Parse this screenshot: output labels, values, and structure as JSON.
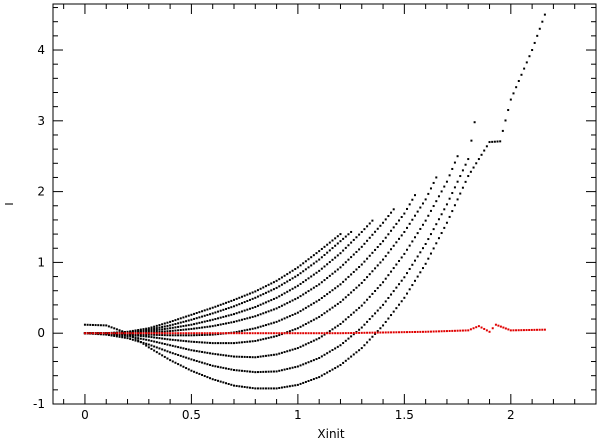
{
  "chart_data": {
    "type": "scatter",
    "xlabel": "Xinit",
    "ylabel": "I",
    "xlim": [
      -0.15,
      2.4
    ],
    "ylim": [
      -1,
      4.65
    ],
    "x_ticks": [
      0,
      0.5,
      1,
      1.5,
      2
    ],
    "x_tick_labels": [
      "0",
      "0.5",
      "1",
      "1.5",
      "2"
    ],
    "y_ticks": [
      -1,
      0,
      1,
      2,
      3,
      4
    ],
    "y_tick_labels": [
      "-1",
      "0",
      "1",
      "2",
      "3",
      "4"
    ],
    "grid": false,
    "legend": "none",
    "colors": {
      "black_series": "#000000",
      "red_series": "#e00000"
    },
    "series": [
      {
        "color": "black",
        "points": [
          [
            0.0,
            0.0
          ],
          [
            0.1,
            0.0
          ],
          [
            0.2,
            0.02
          ],
          [
            0.3,
            0.07
          ],
          [
            0.4,
            0.16
          ],
          [
            0.5,
            0.26
          ],
          [
            0.6,
            0.36
          ],
          [
            0.7,
            0.47
          ],
          [
            0.8,
            0.59
          ],
          [
            0.9,
            0.74
          ],
          [
            1.0,
            0.93
          ],
          [
            1.1,
            1.16
          ],
          [
            1.2,
            1.4
          ]
        ]
      },
      {
        "color": "black",
        "points": [
          [
            0.0,
            0.0
          ],
          [
            0.1,
            0.0
          ],
          [
            0.2,
            0.01
          ],
          [
            0.3,
            0.05
          ],
          [
            0.4,
            0.11
          ],
          [
            0.5,
            0.19
          ],
          [
            0.6,
            0.28
          ],
          [
            0.7,
            0.38
          ],
          [
            0.8,
            0.5
          ],
          [
            0.9,
            0.64
          ],
          [
            1.0,
            0.82
          ],
          [
            1.1,
            1.04
          ],
          [
            1.2,
            1.3
          ],
          [
            1.25,
            1.43
          ]
        ]
      },
      {
        "color": "black",
        "points": [
          [
            0.0,
            0.0
          ],
          [
            0.1,
            0.0
          ],
          [
            0.2,
            0.0
          ],
          [
            0.3,
            0.03
          ],
          [
            0.4,
            0.07
          ],
          [
            0.5,
            0.12
          ],
          [
            0.6,
            0.19
          ],
          [
            0.7,
            0.27
          ],
          [
            0.8,
            0.37
          ],
          [
            0.9,
            0.5
          ],
          [
            1.0,
            0.67
          ],
          [
            1.1,
            0.88
          ],
          [
            1.2,
            1.13
          ],
          [
            1.3,
            1.43
          ],
          [
            1.35,
            1.59
          ]
        ]
      },
      {
        "color": "black",
        "points": [
          [
            0.0,
            0.0
          ],
          [
            0.1,
            0.0
          ],
          [
            0.2,
            0.0
          ],
          [
            0.3,
            0.01
          ],
          [
            0.4,
            0.03
          ],
          [
            0.5,
            0.06
          ],
          [
            0.6,
            0.1
          ],
          [
            0.7,
            0.16
          ],
          [
            0.8,
            0.24
          ],
          [
            0.9,
            0.35
          ],
          [
            1.0,
            0.5
          ],
          [
            1.1,
            0.69
          ],
          [
            1.2,
            0.93
          ],
          [
            1.3,
            1.22
          ],
          [
            1.4,
            1.56
          ],
          [
            1.45,
            1.75
          ]
        ]
      },
      {
        "color": "black",
        "points": [
          [
            0.0,
            0.0
          ],
          [
            0.1,
            0.0
          ],
          [
            0.2,
            -0.01
          ],
          [
            0.3,
            -0.02
          ],
          [
            0.4,
            -0.03
          ],
          [
            0.5,
            -0.03
          ],
          [
            0.6,
            -0.02
          ],
          [
            0.7,
            0.01
          ],
          [
            0.8,
            0.07
          ],
          [
            0.9,
            0.16
          ],
          [
            1.0,
            0.29
          ],
          [
            1.1,
            0.47
          ],
          [
            1.2,
            0.69
          ],
          [
            1.3,
            0.97
          ],
          [
            1.4,
            1.3
          ],
          [
            1.5,
            1.69
          ],
          [
            1.55,
            1.95
          ]
        ]
      },
      {
        "color": "black",
        "points": [
          [
            0.0,
            0.0
          ],
          [
            0.1,
            0.0
          ],
          [
            0.2,
            -0.02
          ],
          [
            0.3,
            -0.05
          ],
          [
            0.4,
            -0.09
          ],
          [
            0.5,
            -0.12
          ],
          [
            0.6,
            -0.14
          ],
          [
            0.7,
            -0.14
          ],
          [
            0.8,
            -0.11
          ],
          [
            0.9,
            -0.04
          ],
          [
            1.0,
            0.07
          ],
          [
            1.1,
            0.23
          ],
          [
            1.2,
            0.44
          ],
          [
            1.3,
            0.71
          ],
          [
            1.4,
            1.04
          ],
          [
            1.5,
            1.43
          ],
          [
            1.6,
            1.89
          ],
          [
            1.65,
            2.2
          ]
        ]
      },
      {
        "color": "black",
        "points": [
          [
            0.0,
            0.0
          ],
          [
            0.1,
            -0.01
          ],
          [
            0.2,
            -0.04
          ],
          [
            0.3,
            -0.1
          ],
          [
            0.4,
            -0.17
          ],
          [
            0.5,
            -0.24
          ],
          [
            0.6,
            -0.29
          ],
          [
            0.7,
            -0.33
          ],
          [
            0.8,
            -0.34
          ],
          [
            0.9,
            -0.3
          ],
          [
            1.0,
            -0.21
          ],
          [
            1.1,
            -0.07
          ],
          [
            1.2,
            0.13
          ],
          [
            1.3,
            0.39
          ],
          [
            1.4,
            0.72
          ],
          [
            1.5,
            1.12
          ],
          [
            1.6,
            1.59
          ],
          [
            1.7,
            2.14
          ],
          [
            1.75,
            2.5
          ]
        ]
      },
      {
        "color": "black",
        "points": [
          [
            0.0,
            0.0
          ],
          [
            0.1,
            -0.02
          ],
          [
            0.2,
            -0.07
          ],
          [
            0.3,
            -0.16
          ],
          [
            0.4,
            -0.27
          ],
          [
            0.5,
            -0.37
          ],
          [
            0.6,
            -0.46
          ],
          [
            0.7,
            -0.52
          ],
          [
            0.8,
            -0.55
          ],
          [
            0.9,
            -0.54
          ],
          [
            1.0,
            -0.47
          ],
          [
            1.1,
            -0.35
          ],
          [
            1.2,
            -0.17
          ],
          [
            1.3,
            0.08
          ],
          [
            1.4,
            0.4
          ],
          [
            1.5,
            0.79
          ],
          [
            1.6,
            1.26
          ],
          [
            1.7,
            1.82
          ],
          [
            1.8,
            2.46
          ],
          [
            1.83,
            2.98
          ]
        ]
      },
      {
        "color": "black",
        "points": [
          [
            0.0,
            0.12
          ],
          [
            0.1,
            0.11
          ],
          [
            0.2,
            0.0
          ],
          [
            0.3,
            -0.2
          ],
          [
            0.4,
            -0.38
          ],
          [
            0.5,
            -0.53
          ],
          [
            0.6,
            -0.65
          ],
          [
            0.7,
            -0.74
          ],
          [
            0.8,
            -0.78
          ],
          [
            0.9,
            -0.78
          ],
          [
            1.0,
            -0.73
          ],
          [
            1.1,
            -0.62
          ],
          [
            1.2,
            -0.45
          ],
          [
            1.3,
            -0.21
          ],
          [
            1.4,
            0.11
          ],
          [
            1.5,
            0.5
          ],
          [
            1.6,
            0.98
          ],
          [
            1.7,
            1.56
          ],
          [
            1.8,
            2.22
          ],
          [
            1.9,
            2.7
          ],
          [
            1.95,
            2.71
          ],
          [
            2.0,
            3.3
          ],
          [
            2.1,
            4.0
          ],
          [
            2.16,
            4.5
          ]
        ]
      },
      {
        "color": "red",
        "points": [
          [
            0.0,
            0.0
          ],
          [
            0.2,
            0.0
          ],
          [
            0.4,
            0.0
          ],
          [
            0.6,
            0.0
          ],
          [
            0.8,
            0.0
          ],
          [
            1.0,
            0.0
          ],
          [
            1.2,
            0.0
          ],
          [
            1.4,
            0.01
          ],
          [
            1.6,
            0.02
          ],
          [
            1.8,
            0.04
          ],
          [
            1.85,
            0.1
          ],
          [
            1.9,
            0.02
          ],
          [
            1.93,
            0.12
          ],
          [
            2.0,
            0.04
          ],
          [
            2.16,
            0.05
          ]
        ]
      }
    ]
  }
}
